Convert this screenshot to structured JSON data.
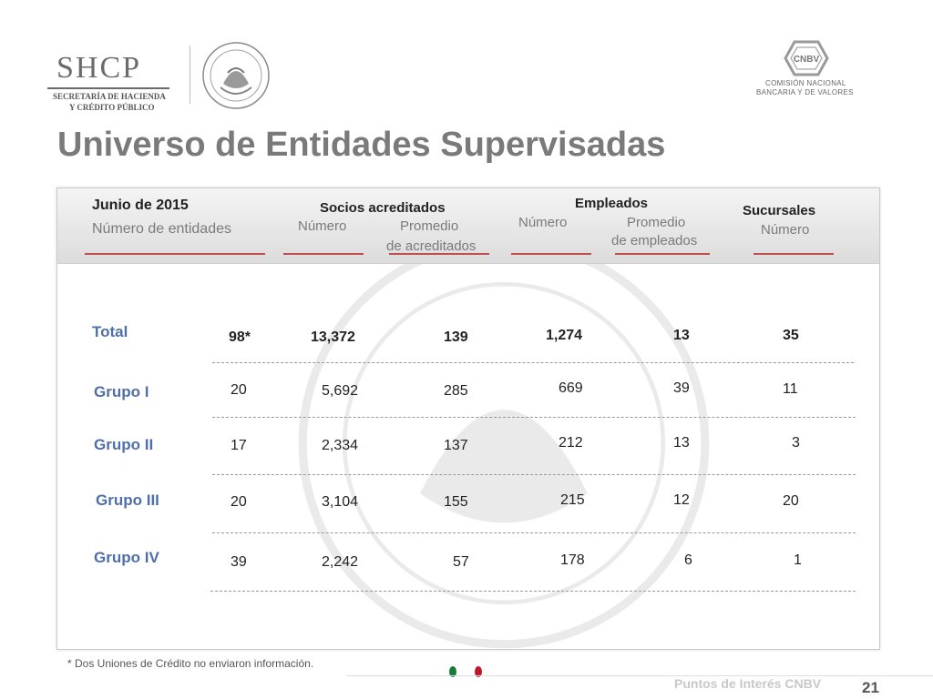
{
  "logos": {
    "shcp_word": "SHCP",
    "shcp_line1": "SECRETARÍA DE HACIENDA",
    "shcp_line2": "Y CRÉDITO PÚBLICO",
    "cnbv_mark": "CNBV",
    "cnbv_line1": "COMISIÓN NACIONAL",
    "cnbv_line2": "BANCARIA Y DE VALORES"
  },
  "title": "Universo de Entidades Supervisadas",
  "table": {
    "header": {
      "date": "Junio de 2015",
      "entities": "Número de entidades",
      "socios_title": "Socios acreditados",
      "socios_numero": "Número",
      "socios_promedio_1": "Promedio",
      "socios_promedio_2": "de acreditados",
      "empleados_title": "Empleados",
      "empleados_numero": "Número",
      "empleados_promedio_1": "Promedio",
      "empleados_promedio_2": "de empleados",
      "sucursales_title": "Sucursales",
      "sucursales_numero": "Número"
    },
    "rows": [
      {
        "label": "Total",
        "entidades": "98*",
        "socios": "13,372",
        "prom_socios": "139",
        "empleados": "1,274",
        "prom_empleados": "13",
        "sucursales": "35"
      },
      {
        "label": "Grupo I",
        "entidades": "20",
        "socios": "5,692",
        "prom_socios": "285",
        "empleados": "669",
        "prom_empleados": "39",
        "sucursales": "11"
      },
      {
        "label": "Grupo II",
        "entidades": "17",
        "socios": "2,334",
        "prom_socios": "137",
        "empleados": "212",
        "prom_empleados": "13",
        "sucursales": "3"
      },
      {
        "label": "Grupo III",
        "entidades": "20",
        "socios": "3,104",
        "prom_socios": "155",
        "empleados": "215",
        "prom_empleados": "12",
        "sucursales": "20"
      },
      {
        "label": "Grupo IV",
        "entidades": "39",
        "socios": "2,242",
        "prom_socios": "57",
        "empleados": "178",
        "prom_empleados": "6",
        "sucursales": "1"
      }
    ]
  },
  "footnote": "* Dos Uniones de Crédito no enviaron información.",
  "footer": {
    "section": "Puntos de Interés CNBV",
    "page": "21"
  },
  "colors": {
    "title": "#7a7a7a",
    "row_label": "#4f6fa8",
    "header_underline": "#c0504d",
    "dot_green": "#1a7a3a",
    "dot_red": "#c0172b"
  }
}
